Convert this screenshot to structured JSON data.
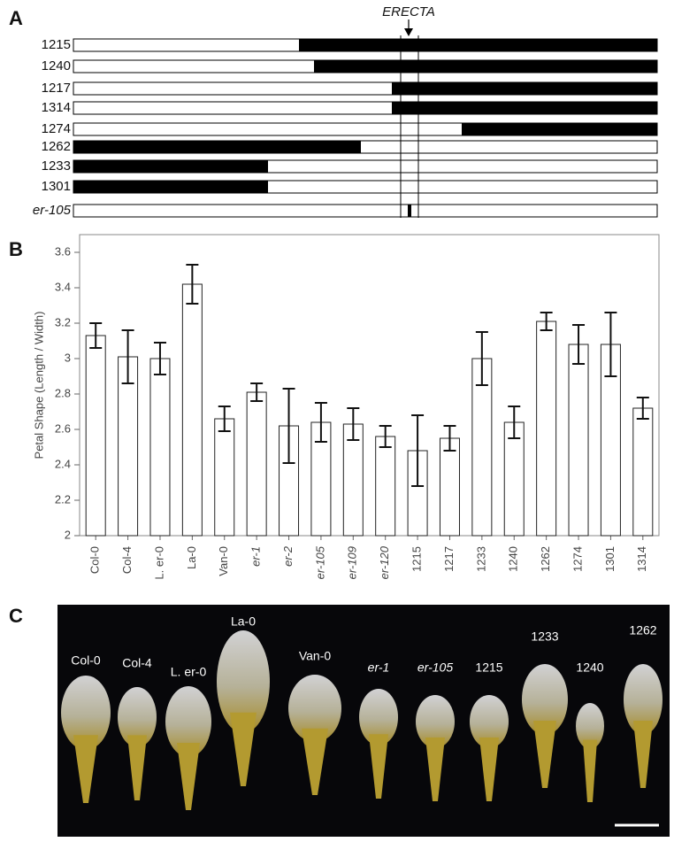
{
  "panel_a": {
    "label": "A",
    "gene_label": "ERECTA",
    "rows": [
      "1215",
      "1240",
      "1217",
      "1314",
      "1274",
      "1262",
      "1233",
      "1301",
      "er-105"
    ]
  },
  "chart_data": {
    "type": "bar",
    "panel_label": "B",
    "y_label": "Petal Shape (Length / Width)",
    "categories": [
      "Col-0",
      "Col-4",
      "L. er-0",
      "La-0",
      "Van-0",
      "er-1",
      "er-2",
      "er-105",
      "er-109",
      "er-120",
      "1215",
      "1217",
      "1233",
      "1240",
      "1262",
      "1274",
      "1301",
      "1314"
    ],
    "values": [
      3.13,
      3.01,
      3.0,
      3.42,
      2.66,
      2.81,
      2.62,
      2.64,
      2.63,
      2.56,
      2.48,
      2.55,
      3.0,
      2.64,
      3.21,
      3.08,
      3.08,
      2.72
    ],
    "errors": [
      0.07,
      0.15,
      0.09,
      0.11,
      0.07,
      0.05,
      0.21,
      0.11,
      0.09,
      0.06,
      0.2,
      0.07,
      0.15,
      0.09,
      0.05,
      0.11,
      0.18,
      0.06
    ],
    "color": "#ffffff",
    "ylim": [
      2,
      3.7
    ],
    "yticks": [
      2,
      2.2,
      2.4,
      2.6,
      2.8,
      3,
      3.2,
      3.4,
      3.6
    ]
  },
  "panel_c": {
    "label": "C",
    "petal_labels": [
      "Col-0",
      "Col-4",
      "L. er-0",
      "La-0",
      "Van-0",
      "er-1",
      "er-105",
      "1215",
      "1233",
      "1240",
      "1262"
    ]
  }
}
